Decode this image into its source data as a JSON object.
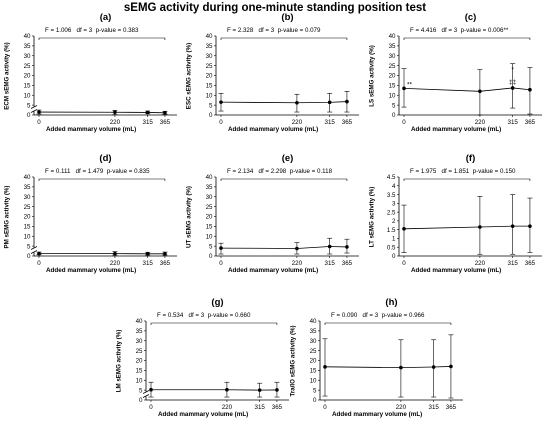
{
  "title": "sEMG activity during one-minute standing position test",
  "chart_data": [
    {
      "type": "line",
      "panel_label": "(a)",
      "stats": {
        "F": "F = 1.006",
        "df": "df = 3",
        "p": "p-value = 0.383"
      },
      "ylabel": "ECM sEMG activity (%)",
      "xlabel": "Added mammary volume (mL)",
      "yticks": [
        "0",
        "5",
        "10",
        "15",
        "20",
        "25",
        "30",
        "35",
        "40"
      ],
      "ylim": [
        0,
        40
      ],
      "y_axis_break": true,
      "x": [
        0,
        220,
        315,
        365
      ],
      "x_ticklabels": [
        "0",
        "220",
        "315",
        "365"
      ],
      "series": [
        {
          "mean": [
            1.5,
            1.4,
            1.3,
            1.1
          ],
          "err_low": [
            0.5,
            0.2,
            0.6,
            0.4
          ],
          "err_high": [
            2.5,
            2.3,
            2.0,
            1.9
          ]
        }
      ],
      "annotations": []
    },
    {
      "type": "line",
      "panel_label": "(b)",
      "stats": {
        "F": "F = 2.328",
        "df": "df = 3",
        "p": "p-value = 0.079"
      },
      "ylabel": "ESC sEMG activity (%)",
      "xlabel": "Added mammary volume (mL)",
      "yticks": [
        "0",
        "5",
        "10",
        "15",
        "20",
        "25",
        "30",
        "35",
        "40"
      ],
      "ylim": [
        0,
        40
      ],
      "y_axis_break": false,
      "x": [
        0,
        220,
        315,
        365
      ],
      "x_ticklabels": [
        "0",
        "220",
        "315",
        "365"
      ],
      "series": [
        {
          "mean": [
            6.5,
            6.2,
            6.4,
            6.8
          ],
          "err_low": [
            2.0,
            1.5,
            1.5,
            1.5
          ],
          "err_high": [
            11.0,
            10.5,
            11.0,
            12.0
          ]
        }
      ],
      "annotations": []
    },
    {
      "type": "line",
      "panel_label": "(c)",
      "stats": {
        "F": "F = 4.416",
        "df": "df = 3",
        "p": "p-value = 0.006**"
      },
      "ylabel": "LS sEMG activity (%)",
      "xlabel": "Added mammary volume (mL)",
      "yticks": [
        "0",
        "5",
        "10",
        "15",
        "20",
        "25",
        "30",
        "35",
        "40"
      ],
      "ylim": [
        0,
        40
      ],
      "y_axis_break": false,
      "x": [
        0,
        220,
        315,
        365
      ],
      "x_ticklabels": [
        "0",
        "220",
        "315",
        "365"
      ],
      "series": [
        {
          "mean": [
            13.5,
            12.0,
            13.7,
            12.8
          ],
          "err_low": [
            4.0,
            0.0,
            3.5,
            0.5
          ],
          "err_high": [
            23.5,
            23.0,
            26.0,
            24.0
          ]
        }
      ],
      "annotations": [
        "**",
        "*",
        "‡‡"
      ]
    },
    {
      "type": "line",
      "panel_label": "(d)",
      "stats": {
        "F": "F = 0.111",
        "df": "df = 1.479",
        "p": "p-value = 0.835"
      },
      "ylabel": "PM sEMG activity (%)",
      "xlabel": "Added mammary volume (mL)",
      "yticks": [
        "0",
        "5",
        "10",
        "15",
        "20",
        "25",
        "30",
        "35",
        "40"
      ],
      "ylim": [
        0,
        40
      ],
      "y_axis_break": true,
      "x": [
        0,
        220,
        315,
        365
      ],
      "x_ticklabels": [
        "0",
        "220",
        "315",
        "365"
      ],
      "series": [
        {
          "mean": [
            1.2,
            1.2,
            1.1,
            1.1
          ],
          "err_low": [
            0.6,
            0.5,
            0.5,
            0.5
          ],
          "err_high": [
            2.0,
            2.2,
            1.9,
            2.0
          ]
        }
      ],
      "annotations": []
    },
    {
      "type": "line",
      "panel_label": "(e)",
      "stats": {
        "F": "F = 2.134",
        "df": "df = 2.298",
        "p": "p-value = 0.118"
      },
      "ylabel": "UT sEMG activity (%)",
      "xlabel": "Added mammary volume (mL)",
      "yticks": [
        "0",
        "5",
        "10",
        "15",
        "20",
        "25",
        "30",
        "35",
        "40"
      ],
      "ylim": [
        0,
        40
      ],
      "y_axis_break": false,
      "x": [
        0,
        220,
        315,
        365
      ],
      "x_ticklabels": [
        "0",
        "220",
        "315",
        "365"
      ],
      "series": [
        {
          "mean": [
            4.0,
            3.8,
            4.8,
            4.6
          ],
          "err_low": [
            1.0,
            1.0,
            1.0,
            1.5
          ],
          "err_high": [
            6.5,
            6.8,
            9.0,
            8.5
          ]
        }
      ],
      "annotations": []
    },
    {
      "type": "line",
      "panel_label": "(f)",
      "stats": {
        "F": "F = 1.975",
        "df": "df = 1.851",
        "p": "p-value = 0.150"
      },
      "ylabel": "LT sEMG activity (%)",
      "xlabel": "Added mammary volume (mL)",
      "yticks": [
        "0",
        "0.5",
        "1",
        "1.5",
        "2",
        "2.5",
        "3",
        "3.5",
        "4",
        "4.5"
      ],
      "ylim": [
        0,
        4.5
      ],
      "y_axis_break": false,
      "x": [
        0,
        220,
        315,
        365
      ],
      "x_ticklabels": [
        "0",
        "220",
        "315",
        "365"
      ],
      "series": [
        {
          "mean": [
            1.55,
            1.65,
            1.7,
            1.7
          ],
          "err_low": [
            0.2,
            0.1,
            0.1,
            0.2
          ],
          "err_high": [
            2.9,
            3.4,
            3.5,
            3.3
          ]
        }
      ],
      "annotations": []
    },
    {
      "type": "line",
      "panel_label": "(g)",
      "stats": {
        "F": "F = 0.534",
        "df": "df = 3",
        "p": "p-value = 0.660"
      },
      "ylabel": "LM sEMG activity (%)",
      "xlabel": "Added mammary volume (mL)",
      "yticks": [
        "0",
        "5",
        "10",
        "15",
        "20",
        "25",
        "30",
        "35",
        "40"
      ],
      "ylim": [
        0,
        40
      ],
      "y_axis_break": true,
      "x": [
        0,
        220,
        315,
        365
      ],
      "x_ticklabels": [
        "0",
        "220",
        "315",
        "365"
      ],
      "series": [
        {
          "mean": [
            5.2,
            5.2,
            5.0,
            5.1
          ],
          "err_low": [
            1.5,
            1.5,
            1.5,
            1.5
          ],
          "err_high": [
            9.0,
            9.0,
            8.5,
            9.0
          ]
        }
      ],
      "annotations": []
    },
    {
      "type": "line",
      "panel_label": "(h)",
      "stats": {
        "F": "F = 0.090",
        "df": "df = 3",
        "p": "p-value = 0.966"
      },
      "ylabel": "Tra/IO sEMG activity (%)",
      "xlabel": "Added mammary volume (mL)",
      "yticks": [
        "0",
        "5",
        "10",
        "15",
        "20",
        "25",
        "30",
        "35",
        "40"
      ],
      "ylim": [
        0,
        40
      ],
      "y_axis_break": false,
      "x": [
        0,
        220,
        315,
        365
      ],
      "x_ticklabels": [
        "0",
        "220",
        "315",
        "365"
      ],
      "series": [
        {
          "mean": [
            16.8,
            16.4,
            16.7,
            17.0
          ],
          "err_low": [
            2.0,
            1.5,
            1.5,
            1.0
          ],
          "err_high": [
            31.0,
            30.5,
            30.5,
            33.0
          ]
        }
      ],
      "annotations": []
    }
  ]
}
